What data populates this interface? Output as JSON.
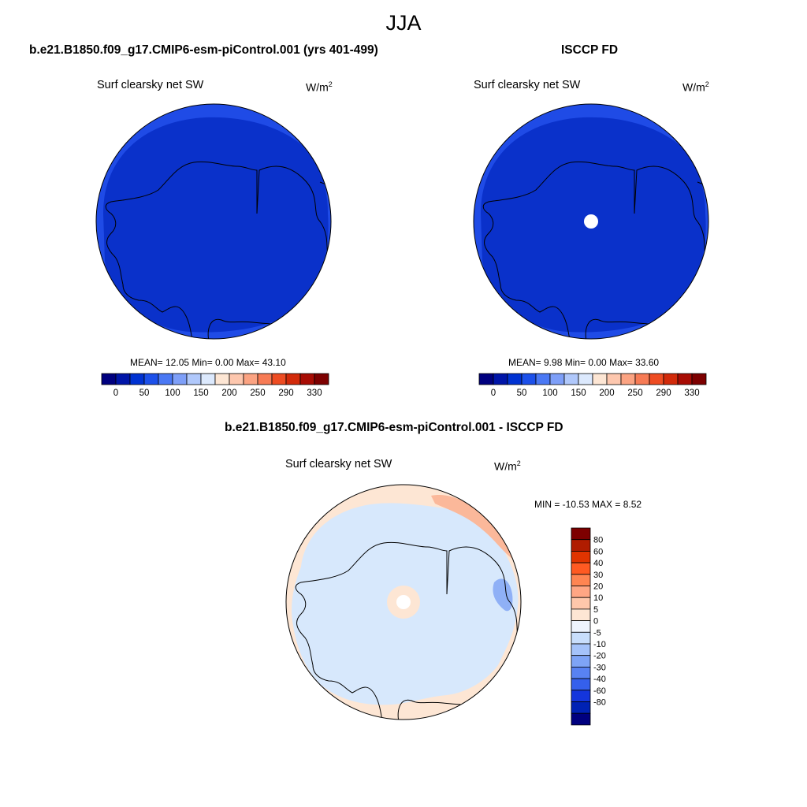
{
  "title": "JJA",
  "panels": [
    {
      "title": "b.e21.B1850.f09_g17.CMIP6-esm-piControl.001 (yrs 401-499)",
      "variable": "Surf clearsky net SW",
      "units_base": "W/m",
      "units_exp": "2",
      "stats": "MEAN=  12.05  Min=   0.00  Max=  43.10",
      "pole_hole": false
    },
    {
      "title": "ISCCP FD",
      "variable": "Surf clearsky net SW",
      "units_base": "W/m",
      "units_exp": "2",
      "stats": "MEAN=   9.98  Min=   0.00  Max=  33.60",
      "pole_hole": true
    }
  ],
  "abs_colorbar": {
    "colors": [
      "#00007f",
      "#0015a8",
      "#0032d2",
      "#1c50ea",
      "#4a78f4",
      "#7e9ff8",
      "#b0c8fb",
      "#dce9fd",
      "#fde6d4",
      "#fdc7ae",
      "#fba382",
      "#f77b55",
      "#ee4c22",
      "#d22a0a",
      "#a80c04",
      "#7d0000"
    ],
    "tick_labels": [
      "0",
      "50",
      "100",
      "150",
      "200",
      "250",
      "290",
      "330"
    ]
  },
  "diff_panel": {
    "title": "b.e21.B1850.f09_g17.CMIP6-esm-piControl.001 - ISCCP FD",
    "variable": "Surf clearsky net SW",
    "units_base": "W/m",
    "units_exp": "2",
    "stats": "MIN = -10.53 MAX =   8.52"
  },
  "diff_colorbar": {
    "colors": [
      "#7d0000",
      "#b01c00",
      "#e03400",
      "#ff5a22",
      "#ff8552",
      "#ffa684",
      "#ffc7ab",
      "#fde6d4",
      "#eef4fe",
      "#c8defc",
      "#a5c3fa",
      "#7ea4f6",
      "#5882f2",
      "#3560ec",
      "#1435dc",
      "#0022b4",
      "#00007f"
    ],
    "tick_labels": [
      "80",
      "60",
      "40",
      "30",
      "20",
      "10",
      "5",
      "0",
      "-5",
      "-10",
      "-20",
      "-30",
      "-40",
      "-60",
      "-80"
    ]
  }
}
